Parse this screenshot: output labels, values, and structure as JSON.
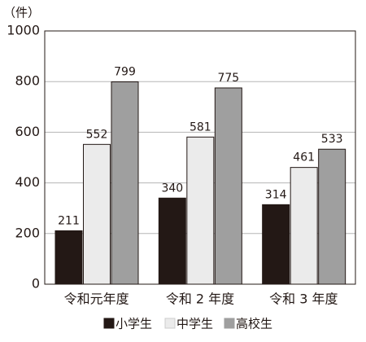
{
  "chart_data": {
    "type": "bar",
    "y_label": "（件）",
    "categories": [
      "令和元年度",
      "令和 2 年度",
      "令和 3 年度"
    ],
    "series": [
      {
        "name": "小学生",
        "color": "#231815",
        "values": [
          211,
          340,
          314
        ]
      },
      {
        "name": "中学生",
        "color": "#ebebeb",
        "values": [
          552,
          581,
          461
        ]
      },
      {
        "name": "高校生",
        "color": "#9f9f9f",
        "values": [
          799,
          775,
          533
        ]
      }
    ],
    "ylim": [
      0,
      1000
    ],
    "yticks": [
      0,
      200,
      400,
      600,
      800,
      1000
    ],
    "grid": true,
    "legend": "bottom"
  }
}
